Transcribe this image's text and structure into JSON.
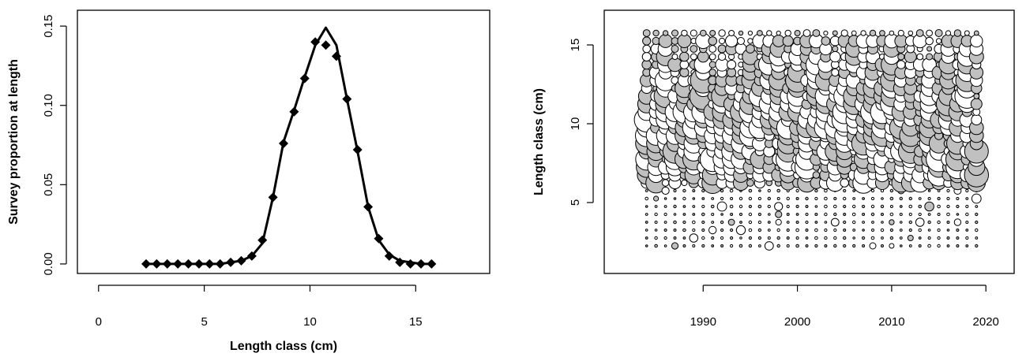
{
  "chart_data": [
    {
      "type": "line",
      "xlabel": "Length class (cm)",
      "ylabel": "Survey proportion at length",
      "xlim": [
        -1,
        18.5
      ],
      "ylim": [
        -0.006,
        0.16
      ],
      "x_ticks": [
        "0",
        "5",
        "10",
        "15"
      ],
      "y_ticks": [
        "0.00",
        "0.05",
        "0.10",
        "0.15"
      ],
      "series": [
        {
          "style": "line",
          "x": [
            2.25,
            2.75,
            3.25,
            3.75,
            4.25,
            4.75,
            5.25,
            5.75,
            6.25,
            6.75,
            7.25,
            7.75,
            8.25,
            8.75,
            9.25,
            9.75,
            10.25,
            10.75,
            11.25,
            11.75,
            12.25,
            12.75,
            13.25,
            13.75,
            14.25,
            14.75,
            15.25,
            15.75
          ],
          "y": [
            0,
            0,
            0,
            0,
            0,
            0,
            0,
            0,
            0.001,
            0.002,
            0.005,
            0.013,
            0.042,
            0.077,
            0.097,
            0.118,
            0.138,
            0.149,
            0.138,
            0.104,
            0.071,
            0.036,
            0.015,
            0.006,
            0.002,
            0.001,
            0,
            0
          ]
        },
        {
          "style": "diamond-markers",
          "x": [
            2.25,
            2.75,
            3.25,
            3.75,
            4.25,
            4.75,
            5.25,
            5.75,
            6.25,
            6.75,
            7.25,
            7.75,
            8.25,
            8.75,
            9.25,
            9.75,
            10.25,
            10.75,
            11.25,
            11.75,
            12.25,
            12.75,
            13.25,
            13.75,
            14.25,
            14.75,
            15.25,
            15.75
          ],
          "y": [
            0,
            0,
            0,
            0,
            0,
            0,
            0,
            0,
            0.001,
            0.002,
            0.005,
            0.015,
            0.042,
            0.076,
            0.096,
            0.117,
            0.14,
            0.138,
            0.131,
            0.104,
            0.072,
            0.036,
            0.016,
            0.005,
            0.001,
            0,
            0,
            0
          ]
        }
      ]
    },
    {
      "type": "scatter",
      "subtype": "bubble",
      "xlabel": "",
      "ylabel": "Length class (cm)",
      "xlim": [
        1979.5,
        2023
      ],
      "ylim": [
        0.5,
        17.2
      ],
      "x_ticks": [
        "1990",
        "2000",
        "2010",
        "2020"
      ],
      "y_ticks": [
        "5",
        "10",
        "15"
      ],
      "years": [
        1984,
        1985,
        1986,
        1987,
        1988,
        1989,
        1990,
        1991,
        1992,
        1993,
        1994,
        1995,
        1996,
        1997,
        1998,
        1999,
        2000,
        2001,
        2002,
        2003,
        2004,
        2005,
        2006,
        2007,
        2008,
        2009,
        2010,
        2011,
        2012,
        2013,
        2014,
        2015,
        2016,
        2017,
        2018,
        2019
      ],
      "length_classes": [
        2.25,
        2.75,
        3.25,
        3.75,
        4.25,
        4.75,
        5.25,
        5.75,
        6.25,
        6.75,
        7.25,
        7.75,
        8.25,
        8.75,
        9.25,
        9.75,
        10.25,
        10.75,
        11.25,
        11.75,
        12.25,
        12.75,
        13.25,
        13.75,
        14.25,
        14.75,
        15.25,
        15.75
      ],
      "fill_positive": "#c0c0c0",
      "fill_negative": "#ffffff",
      "year_peak_length": [
        9,
        8,
        12,
        9,
        10,
        9,
        12,
        8,
        10,
        8,
        9,
        11,
        10,
        12,
        12,
        8,
        12,
        8,
        12,
        11,
        9,
        10,
        12,
        8,
        11,
        10,
        12,
        9,
        8,
        4,
        10,
        7,
        12,
        8,
        13,
        7
      ],
      "year_sign_seed": [
        1,
        2,
        3,
        4,
        5,
        6,
        7,
        8,
        9,
        10,
        11,
        12,
        13,
        14,
        15,
        16,
        17,
        18,
        19,
        20,
        21,
        22,
        23,
        24,
        25,
        26,
        27,
        28,
        29,
        30,
        31,
        32,
        33,
        34,
        35,
        36
      ]
    }
  ]
}
